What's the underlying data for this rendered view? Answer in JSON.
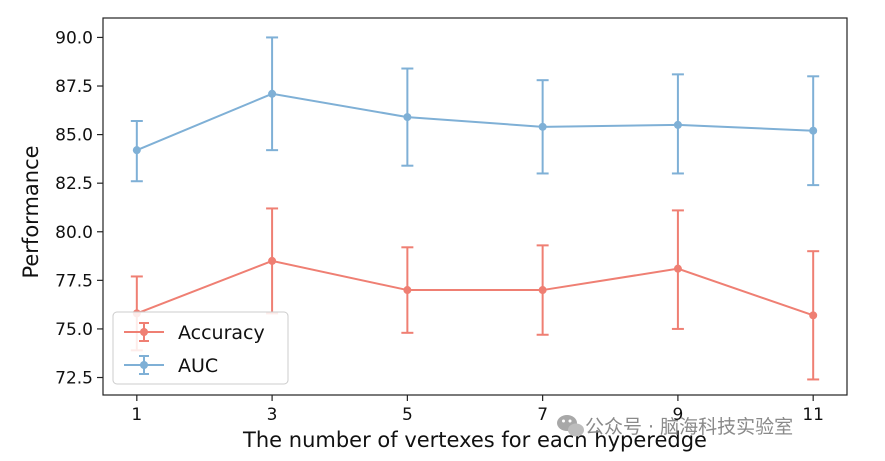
{
  "chart_data": {
    "type": "line",
    "title": "",
    "xlabel": "The number of vertexes for each hyperedge",
    "ylabel": "Performance",
    "x": [
      1,
      3,
      5,
      7,
      9,
      11
    ],
    "xticks": [
      "1",
      "3",
      "5",
      "7",
      "9",
      "11"
    ],
    "xlim": [
      0.5,
      11.5
    ],
    "ylim": [
      71.6,
      91.0
    ],
    "yticks": [
      "72.5",
      "75.0",
      "77.5",
      "80.0",
      "82.5",
      "85.0",
      "87.5",
      "90.0"
    ],
    "grid": false,
    "legend_position": "lower-left",
    "series": [
      {
        "name": "Accuracy",
        "color": "#ef7f73",
        "values": [
          75.8,
          78.5,
          77.0,
          77.0,
          78.1,
          75.7
        ],
        "error_low": [
          73.9,
          75.8,
          74.8,
          74.7,
          75.0,
          72.4
        ],
        "error_high": [
          77.7,
          81.2,
          79.2,
          79.3,
          81.1,
          79.0
        ]
      },
      {
        "name": "AUC",
        "color": "#7fb0d6",
        "values": [
          84.2,
          87.1,
          85.9,
          85.4,
          85.5,
          85.2
        ],
        "error_low": [
          82.6,
          84.2,
          83.4,
          83.0,
          83.0,
          82.4
        ],
        "error_high": [
          85.7,
          90.0,
          88.4,
          87.8,
          88.1,
          88.0
        ]
      }
    ]
  },
  "watermark": {
    "text": "公众号 · 脑海科技实验室",
    "icon": "wechat-icon"
  }
}
